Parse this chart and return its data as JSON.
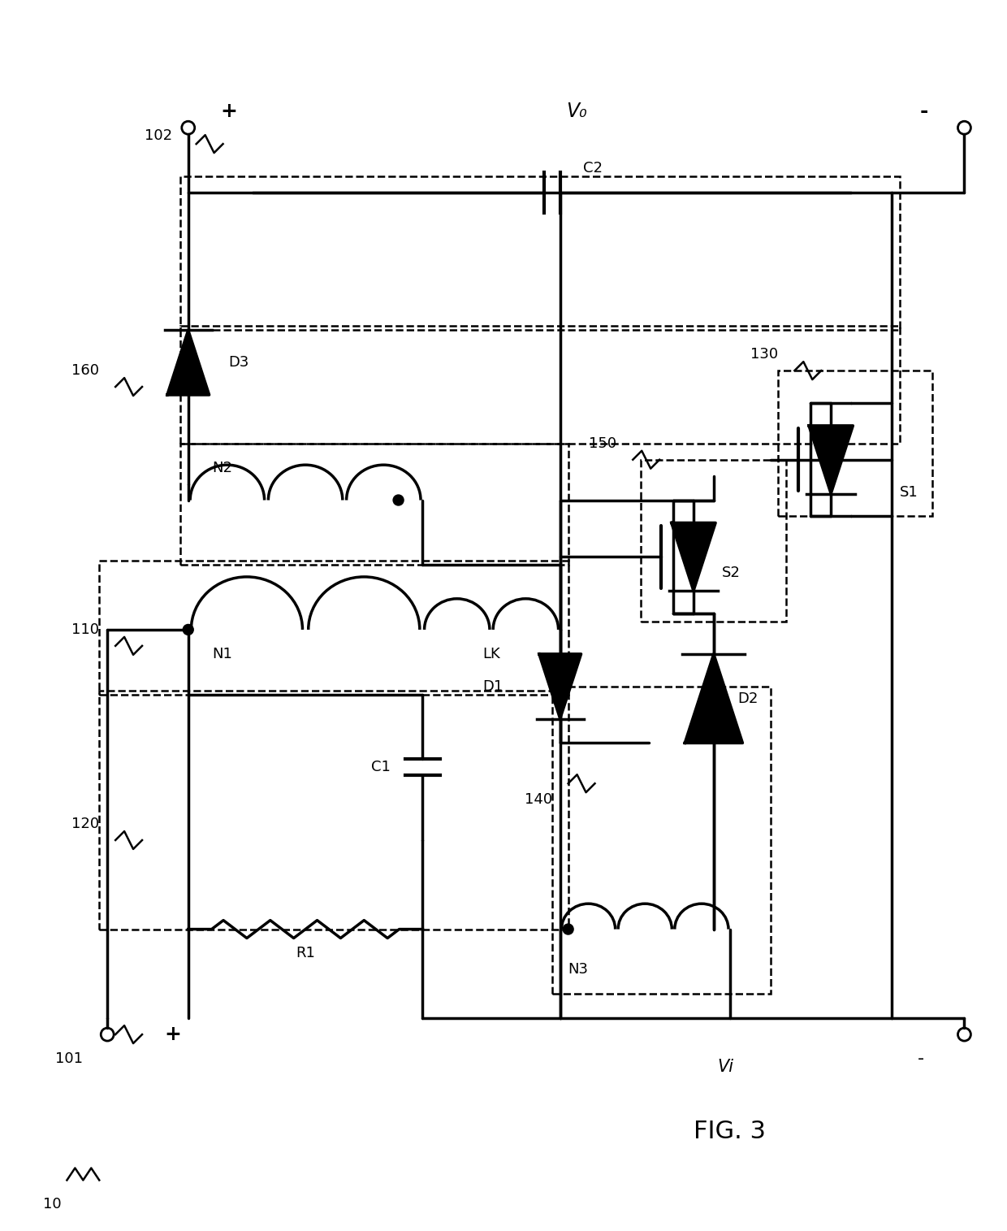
{
  "title": "FIG. 3",
  "bg": "#ffffff",
  "lw": 2.5,
  "fw": 12.4,
  "fh": 15.15,
  "labels": {
    "V0": "V₀",
    "Vi": "Vi",
    "plus_out": "+",
    "minus_out": "-",
    "plus_in": "+",
    "minus_in": "-",
    "n101": "101",
    "n102": "102",
    "n110": "110",
    "n120": "120",
    "n130": "130",
    "n140": "140",
    "n150": "150",
    "n160": "160",
    "n10": "10",
    "N1": "N1",
    "N2": "N2",
    "N3": "N3",
    "LK": "LK",
    "C1": "C1",
    "C2": "C2",
    "R1": "R1",
    "D1": "D1",
    "D2": "D2",
    "D3": "D3",
    "S1": "S1",
    "S2": "S2",
    "fig": "FIG. 3"
  }
}
